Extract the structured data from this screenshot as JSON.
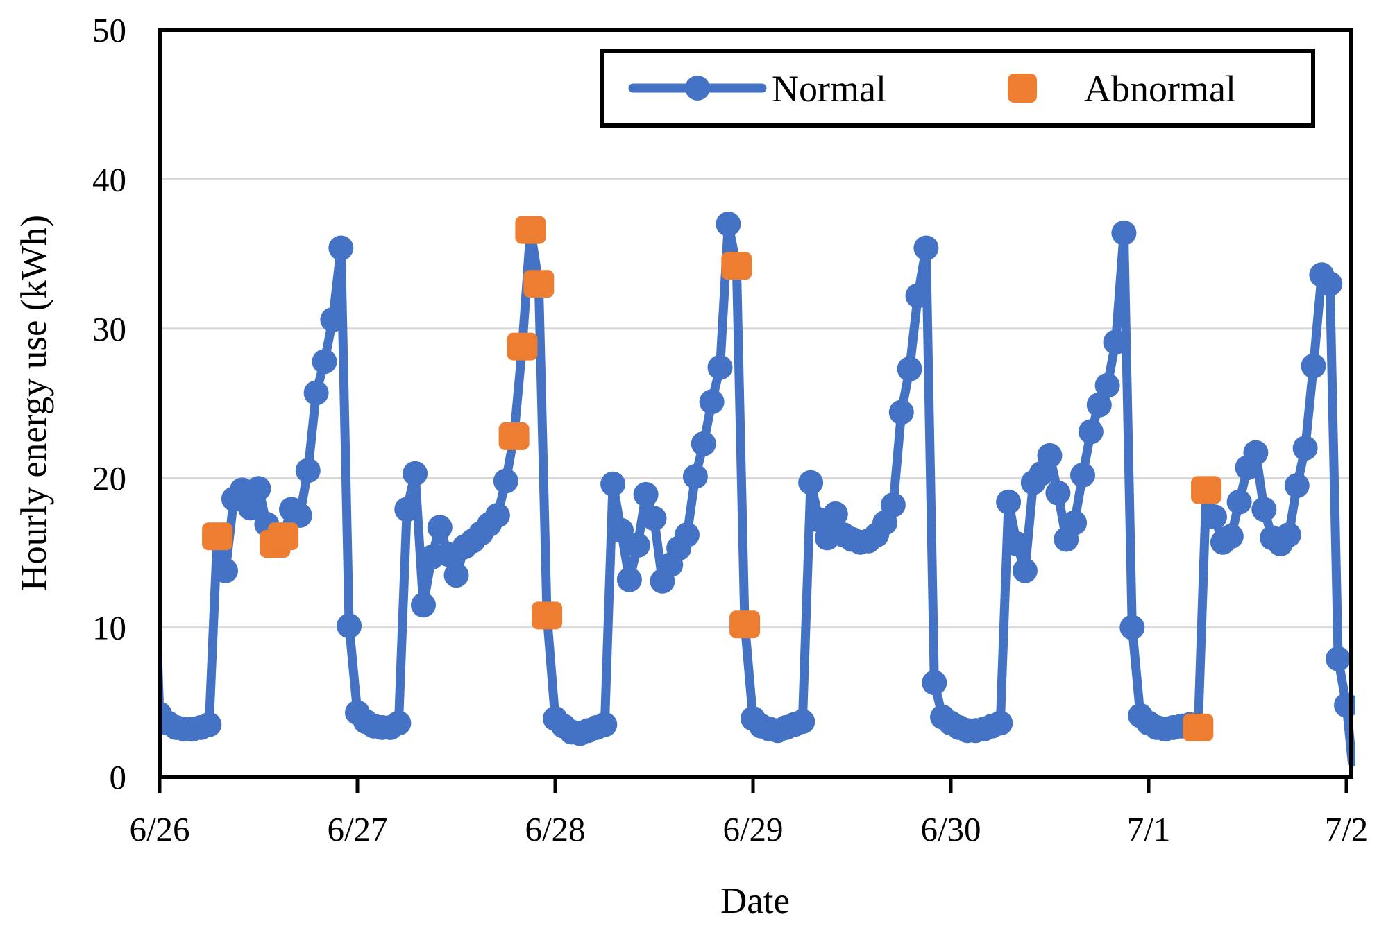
{
  "chart_data": {
    "type": "line",
    "title": "",
    "xlabel": "Date",
    "ylabel": "Hourly energy use (kWh)",
    "x_tick_labels": [
      "6/26",
      "6/27",
      "6/28",
      "6/29",
      "6/30",
      "7/1",
      "7/2"
    ],
    "y_tick_labels": [
      "0",
      "10",
      "20",
      "30",
      "40",
      "50"
    ],
    "y_ticks": [
      0,
      10,
      20,
      30,
      40,
      50
    ],
    "ylim": [
      0,
      50
    ],
    "hours_per_day": 24,
    "grid": "horizontal",
    "legend_position": "top-inside",
    "legend": [
      {
        "label": "Normal",
        "marker": "circle-on-line"
      },
      {
        "label": "Abnormal",
        "marker": "square"
      }
    ],
    "colors": {
      "normal": "#4472C4",
      "abnormal": "#ED7D31",
      "grid": "#D9D9D9",
      "axis": "#000000",
      "background": "#FFFFFF"
    },
    "series": [
      {
        "name": "Normal",
        "style": "line+markers",
        "marker": "circle",
        "values": [
          4.2,
          3.6,
          3.3,
          3.2,
          3.2,
          3.3,
          3.5,
          16.1,
          13.8,
          18.6,
          19.2,
          18.0,
          19.3,
          16.9,
          15.6,
          16.1,
          17.9,
          17.5,
          20.5,
          25.7,
          27.8,
          30.6,
          35.4,
          10.1,
          4.3,
          3.7,
          3.4,
          3.3,
          3.3,
          3.6,
          17.9,
          20.3,
          11.5,
          14.7,
          16.7,
          14.9,
          13.5,
          15.4,
          15.8,
          16.3,
          16.9,
          17.5,
          19.8,
          22.8,
          28.8,
          36.6,
          33.0,
          10.8,
          3.9,
          3.4,
          3.0,
          2.9,
          3.1,
          3.3,
          3.5,
          19.6,
          16.5,
          13.2,
          15.5,
          18.9,
          17.3,
          13.1,
          14.2,
          15.3,
          16.2,
          20.1,
          22.3,
          25.1,
          27.4,
          37.0,
          34.2,
          10.2,
          3.9,
          3.4,
          3.2,
          3.1,
          3.3,
          3.5,
          3.7,
          19.7,
          17.2,
          16.0,
          17.6,
          16.2,
          15.9,
          15.7,
          15.8,
          16.2,
          17.0,
          18.2,
          24.4,
          27.3,
          32.2,
          35.4,
          6.3,
          4.0,
          3.6,
          3.3,
          3.1,
          3.1,
          3.2,
          3.4,
          3.6,
          18.4,
          15.6,
          13.8,
          19.7,
          20.3,
          21.5,
          19.0,
          15.9,
          17.0,
          20.2,
          23.1,
          24.9,
          26.2,
          29.1,
          36.4,
          10.0,
          4.1,
          3.6,
          3.3,
          3.2,
          3.3,
          3.4,
          3.5,
          3.3,
          19.2,
          17.4,
          15.7,
          16.1,
          18.4,
          20.7,
          21.7,
          17.9,
          16.0,
          15.6,
          16.2,
          19.5,
          22.0,
          27.5,
          33.6,
          33.0,
          7.9,
          4.8
        ]
      },
      {
        "name": "Abnormal",
        "style": "markers",
        "marker": "square",
        "points": [
          {
            "t": 7,
            "v": 16.1
          },
          {
            "t": 14,
            "v": 15.6
          },
          {
            "t": 15,
            "v": 16.1
          },
          {
            "t": 43,
            "v": 22.8
          },
          {
            "t": 44,
            "v": 28.8
          },
          {
            "t": 45,
            "v": 36.6
          },
          {
            "t": 46,
            "v": 33.0
          },
          {
            "t": 47,
            "v": 10.8
          },
          {
            "t": 70,
            "v": 34.2
          },
          {
            "t": 71,
            "v": 10.2
          },
          {
            "t": 126,
            "v": 3.3
          },
          {
            "t": 127,
            "v": 19.2
          }
        ]
      }
    ],
    "lead_in_stub": {
      "t": -0.7,
      "v": 15.0
    },
    "lead_out_stub": {
      "t": 144.7,
      "v": 1.0
    }
  }
}
